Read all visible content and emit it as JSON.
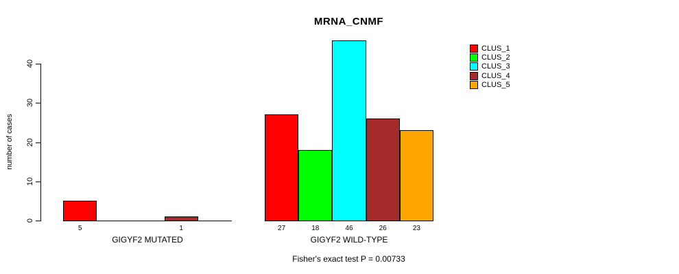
{
  "chart_data": {
    "type": "bar",
    "title": "MRNA_CNMF",
    "ylabel": "number of cases",
    "xlabel": "",
    "subtitle": "Fisher's exact test P = 0.00733",
    "ylim": [
      0,
      46
    ],
    "yticks": [
      0,
      10,
      20,
      30,
      40
    ],
    "grid": false,
    "legend_position": "top-right",
    "background": "#FFFFFF",
    "bar_border_color": "#000000",
    "series": [
      {
        "name": "CLUS_1",
        "color": "#FF0000"
      },
      {
        "name": "CLUS_2",
        "color": "#00FF00"
      },
      {
        "name": "CLUS_3",
        "color": "#00FFFF"
      },
      {
        "name": "CLUS_4",
        "color": "#A52A2A"
      },
      {
        "name": "CLUS_5",
        "color": "#FFA500"
      }
    ],
    "groups": [
      {
        "label": "GIGYF2 MUTATED",
        "values": [
          5,
          0,
          0,
          1,
          0
        ]
      },
      {
        "label": "GIGYF2 WILD-TYPE",
        "values": [
          27,
          18,
          46,
          26,
          23
        ]
      }
    ]
  }
}
